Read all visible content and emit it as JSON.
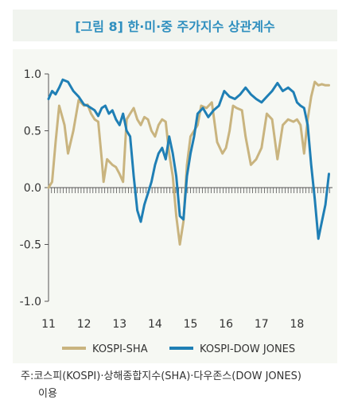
{
  "title": "[그림 8] 한·미·중 주가지수 상관계수",
  "note_line1": "주:코스피(KOSPI)·상해종합지수(SHA)·다우존스(DOW JONES)",
  "note_line2": "이용",
  "colors": {
    "title": "#2f8fbf",
    "sha": "#c9b47f",
    "dow": "#1f7fb5",
    "panel": "#f6f8f3",
    "title_bg": "#f1f4ef"
  },
  "chart_data": {
    "type": "line",
    "ylim": [
      -1.0,
      1.0
    ],
    "xlim": [
      11.0,
      19.0
    ],
    "y_ticks": [
      "1.0",
      "0.5",
      "0.0",
      "-0.5",
      "-1.0"
    ],
    "y_tick_values": [
      1.0,
      0.5,
      0.0,
      -0.5,
      -1.0
    ],
    "x_ticks": [
      "11",
      "12",
      "13",
      "14",
      "15",
      "16",
      "17",
      "18"
    ],
    "x_tick_values": [
      11,
      12,
      13,
      14,
      15,
      16,
      17,
      18
    ],
    "legend_position": "bottom",
    "series": [
      {
        "name": "KOSPI-SHA",
        "color": "#c9b47f",
        "x": [
          11.0,
          11.1,
          11.2,
          11.3,
          11.45,
          11.55,
          11.7,
          11.85,
          12.0,
          12.1,
          12.2,
          12.3,
          12.4,
          12.5,
          12.55,
          12.65,
          12.8,
          12.9,
          13.0,
          13.1,
          13.2,
          13.3,
          13.4,
          13.5,
          13.6,
          13.7,
          13.8,
          13.9,
          14.0,
          14.1,
          14.2,
          14.3,
          14.4,
          14.5,
          14.6,
          14.7,
          14.8,
          14.9,
          15.0,
          15.1,
          15.2,
          15.3,
          15.45,
          15.6,
          15.75,
          15.9,
          16.0,
          16.1,
          16.2,
          16.3,
          16.45,
          16.55,
          16.7,
          16.85,
          17.0,
          17.15,
          17.3,
          17.45,
          17.6,
          17.75,
          17.9,
          18.0,
          18.1,
          18.2,
          18.3,
          18.4,
          18.5,
          18.6,
          18.7,
          18.8,
          18.9
        ],
        "y": [
          0.0,
          0.05,
          0.4,
          0.72,
          0.55,
          0.3,
          0.5,
          0.77,
          0.72,
          0.73,
          0.65,
          0.6,
          0.58,
          0.25,
          0.05,
          0.25,
          0.2,
          0.18,
          0.12,
          0.05,
          0.6,
          0.65,
          0.7,
          0.6,
          0.55,
          0.62,
          0.6,
          0.5,
          0.45,
          0.55,
          0.6,
          0.58,
          0.3,
          0.1,
          -0.25,
          -0.5,
          -0.3,
          0.2,
          0.45,
          0.5,
          0.55,
          0.72,
          0.7,
          0.75,
          0.4,
          0.3,
          0.35,
          0.5,
          0.72,
          0.7,
          0.68,
          0.45,
          0.2,
          0.25,
          0.35,
          0.65,
          0.6,
          0.25,
          0.55,
          0.6,
          0.58,
          0.6,
          0.55,
          0.3,
          0.6,
          0.8,
          0.93,
          0.9,
          0.91,
          0.9,
          0.9
        ]
      },
      {
        "name": "KOSPI-DOW JONES",
        "color": "#1f7fb5",
        "x": [
          11.0,
          11.1,
          11.2,
          11.3,
          11.4,
          11.55,
          11.7,
          11.85,
          12.0,
          12.1,
          12.2,
          12.3,
          12.4,
          12.5,
          12.6,
          12.7,
          12.8,
          12.9,
          13.0,
          13.1,
          13.2,
          13.3,
          13.4,
          13.5,
          13.6,
          13.7,
          13.8,
          13.9,
          14.0,
          14.1,
          14.2,
          14.3,
          14.4,
          14.5,
          14.6,
          14.7,
          14.8,
          14.9,
          15.0,
          15.1,
          15.2,
          15.35,
          15.5,
          15.65,
          15.8,
          15.95,
          16.1,
          16.25,
          16.4,
          16.55,
          16.7,
          16.85,
          17.0,
          17.15,
          17.3,
          17.45,
          17.6,
          17.75,
          17.9,
          18.0,
          18.1,
          18.2,
          18.3,
          18.4,
          18.5,
          18.6,
          18.7,
          18.8,
          18.9
        ],
        "y": [
          0.78,
          0.85,
          0.82,
          0.88,
          0.95,
          0.93,
          0.85,
          0.8,
          0.73,
          0.72,
          0.7,
          0.68,
          0.63,
          0.7,
          0.72,
          0.65,
          0.68,
          0.6,
          0.55,
          0.65,
          0.5,
          0.45,
          0.1,
          -0.2,
          -0.3,
          -0.15,
          -0.05,
          0.05,
          0.2,
          0.3,
          0.35,
          0.25,
          0.45,
          0.3,
          0.1,
          -0.25,
          -0.28,
          0.1,
          0.3,
          0.45,
          0.65,
          0.7,
          0.62,
          0.68,
          0.72,
          0.85,
          0.8,
          0.78,
          0.82,
          0.88,
          0.82,
          0.78,
          0.75,
          0.8,
          0.85,
          0.92,
          0.85,
          0.88,
          0.84,
          0.75,
          0.72,
          0.7,
          0.55,
          0.2,
          -0.1,
          -0.45,
          -0.3,
          -0.15,
          0.12
        ]
      }
    ]
  }
}
